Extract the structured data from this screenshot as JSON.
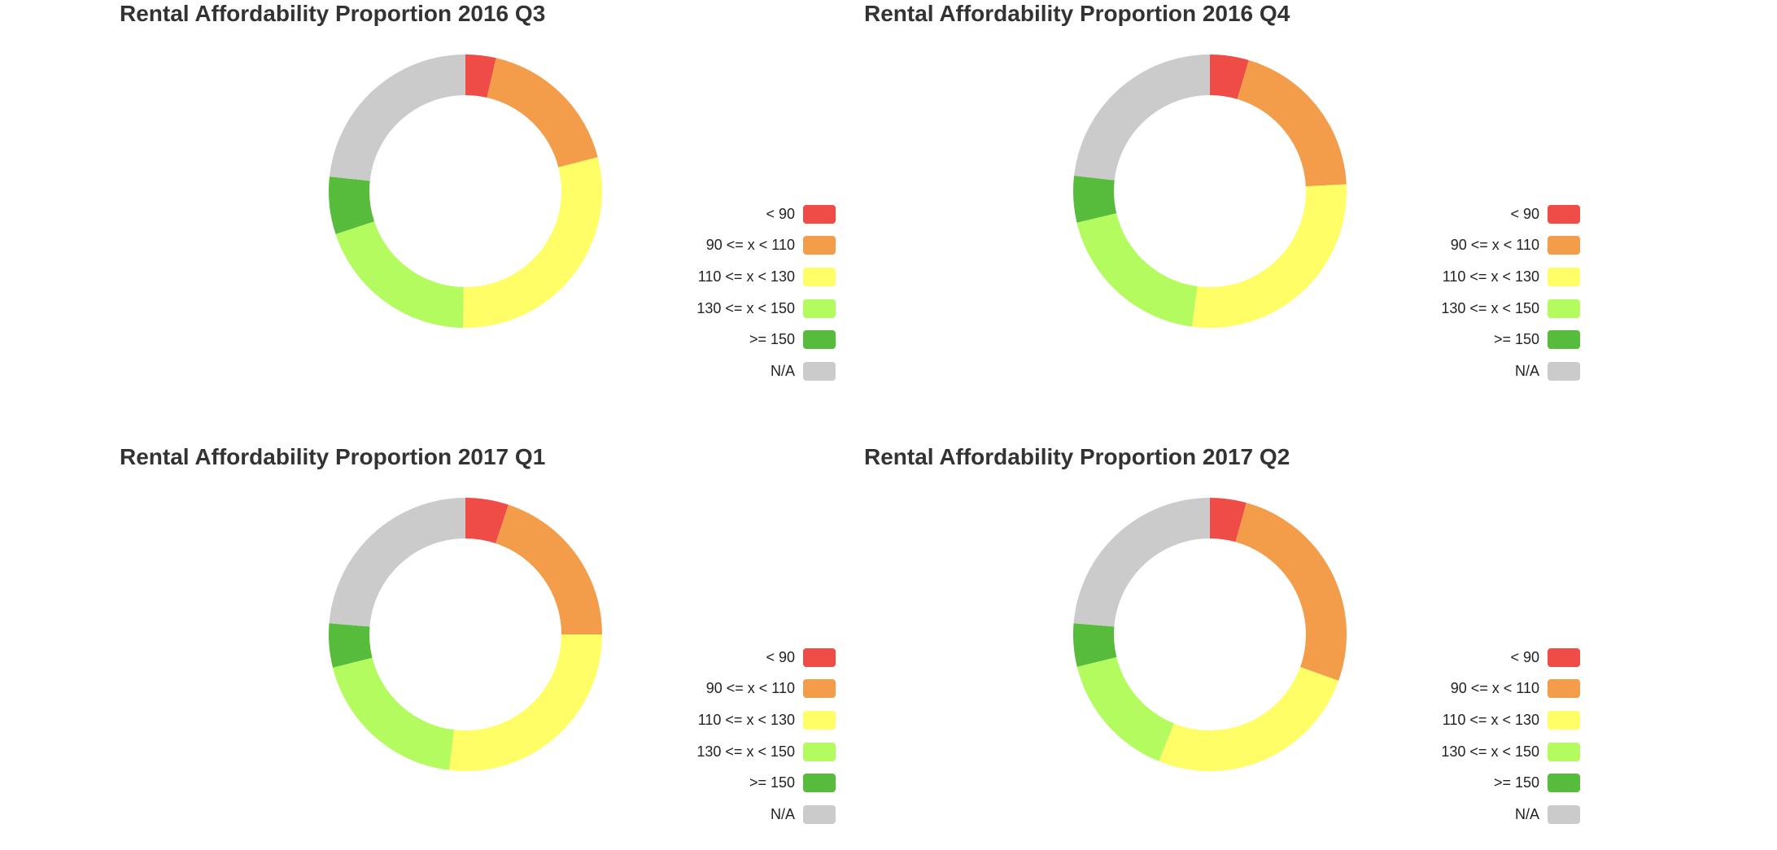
{
  "legend_items": [
    {
      "label": "< 90",
      "color": "#ef4b47"
    },
    {
      "label": "90 <= x < 110",
      "color": "#f39d4b"
    },
    {
      "label": "110 <= x < 130",
      "color": "#fffe66"
    },
    {
      "label": "130 <= x < 150",
      "color": "#b3fb5f"
    },
    {
      "label": ">= 150",
      "color": "#57bb3c"
    },
    {
      "label": "N/A",
      "color": "#cbcbcb"
    }
  ],
  "chart_data": [
    {
      "type": "pie",
      "title": "Rental Affordability Proportion 2016 Q3",
      "categories": [
        "< 90",
        "90 <= x < 110",
        "110 <= x < 130",
        "130 <= x < 150",
        ">= 150",
        "N/A"
      ],
      "values": [
        3.6,
        17.4,
        29.3,
        19.6,
        6.8,
        23.3
      ],
      "unit": "%",
      "legend_position": "right",
      "donut": true
    },
    {
      "type": "pie",
      "title": "Rental Affordability Proportion 2016 Q4",
      "categories": [
        "< 90",
        "90 <= x < 110",
        "110 <= x < 130",
        "130 <= x < 150",
        ">= 150",
        "N/A"
      ],
      "values": [
        4.6,
        19.6,
        27.9,
        19.2,
        5.5,
        23.2
      ],
      "unit": "%",
      "legend_position": "right",
      "donut": true
    },
    {
      "type": "pie",
      "title": "Rental Affordability Proportion 2017 Q1",
      "categories": [
        "< 90",
        "90 <= x < 110",
        "110 <= x < 130",
        "130 <= x < 150",
        ">= 150",
        "N/A"
      ],
      "values": [
        5.1,
        19.9,
        26.9,
        19.2,
        5.2,
        23.7
      ],
      "unit": "%",
      "legend_position": "right",
      "donut": true
    },
    {
      "type": "pie",
      "title": "Rental Affordability Proportion 2017 Q2",
      "categories": [
        "< 90",
        "90 <= x < 110",
        "110 <= x < 130",
        "130 <= x < 150",
        ">= 150",
        "N/A"
      ],
      "values": [
        4.3,
        26.2,
        25.6,
        15.1,
        5.1,
        23.7
      ],
      "unit": "%",
      "legend_position": "right",
      "donut": true
    }
  ]
}
